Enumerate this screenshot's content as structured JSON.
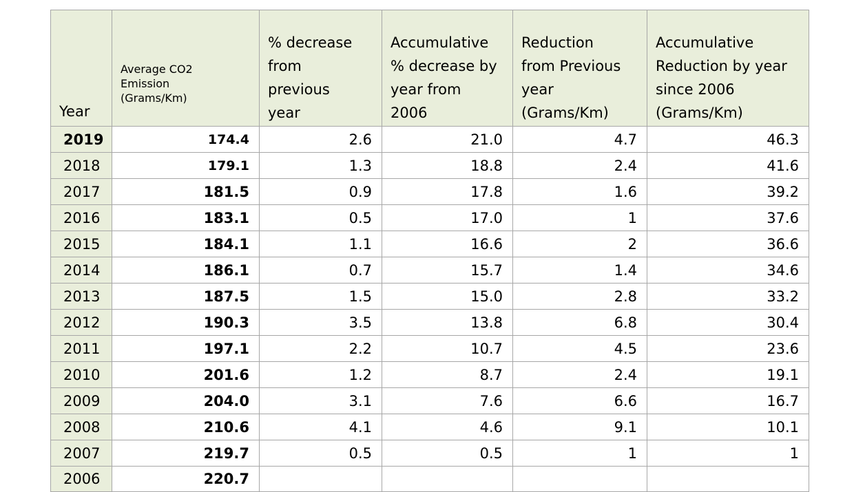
{
  "chart_data": {
    "type": "table",
    "columns": [
      "Year",
      "Average CO2 Emission (Grams/Km)",
      "% decrease from previous year",
      "Accumulative % decrease by year from 2006",
      "Reduction from Previous year (Grams/Km)",
      "Accumulative Reduction by year since 2006 (Grams/Km)"
    ],
    "header_lines": [
      [
        "Year"
      ],
      [
        "Average CO2",
        "Emission",
        "(Grams/Km)"
      ],
      [
        "% decrease",
        "from",
        "previous",
        "year"
      ],
      [
        "Accumulative",
        "% decrease by",
        "year from",
        "2006"
      ],
      [
        "Reduction",
        "from Previous",
        "year",
        "(Grams/Km)"
      ],
      [
        "Accumulative",
        "Reduction by year",
        "since 2006",
        "(Grams/Km)"
      ]
    ],
    "rows": [
      [
        "2019",
        "174.4",
        "2.6",
        "21.0",
        "4.7",
        "46.3"
      ],
      [
        "2018",
        "179.1",
        "1.3",
        "18.8",
        "2.4",
        "41.6"
      ],
      [
        "2017",
        "181.5",
        "0.9",
        "17.8",
        "1.6",
        "39.2"
      ],
      [
        "2016",
        "183.1",
        "0.5",
        "17.0",
        "1",
        "37.6"
      ],
      [
        "2015",
        "184.1",
        "1.1",
        "16.6",
        "2",
        "36.6"
      ],
      [
        "2014",
        "186.1",
        "0.7",
        "15.7",
        "1.4",
        "34.6"
      ],
      [
        "2013",
        "187.5",
        "1.5",
        "15.0",
        "2.8",
        "33.2"
      ],
      [
        "2012",
        "190.3",
        "3.5",
        "13.8",
        "6.8",
        "30.4"
      ],
      [
        "2011",
        "197.1",
        "2.2",
        "10.7",
        "4.5",
        "23.6"
      ],
      [
        "2010",
        "201.6",
        "1.2",
        "8.7",
        "2.4",
        "19.1"
      ],
      [
        "2009",
        "204.0",
        "3.1",
        "7.6",
        "6.6",
        "16.7"
      ],
      [
        "2008",
        "210.6",
        "4.1",
        "4.6",
        "9.1",
        "10.1"
      ],
      [
        "2007",
        "219.7",
        "0.5",
        "0.5",
        "1",
        "1"
      ],
      [
        "2006",
        "220.7",
        "",
        "",
        "",
        ""
      ]
    ]
  },
  "colors": {
    "header_background": "#e9eedb",
    "year_column_background": "#e9eedb",
    "grid_lines": "#a7a7a7"
  }
}
